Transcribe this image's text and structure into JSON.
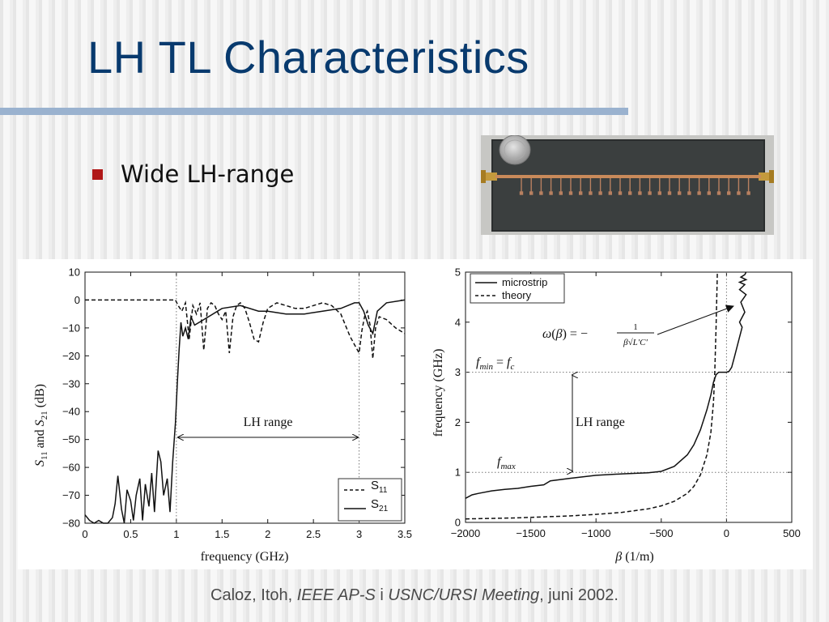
{
  "slide": {
    "title": "LH TL Characteristics",
    "bullet": "Wide LH-range"
  },
  "citation": {
    "authors": "Caloz, Itoh, ",
    "venue1": "IEEE AP-S",
    "conj": " i ",
    "venue2": "USNC/URSI Meeting",
    "date": ", juni 2002."
  },
  "colors": {
    "title": "#083a6e",
    "rule": "#9ab2cf",
    "bullet": "#b01818",
    "citation": "#4a4a4a"
  },
  "chart_data": [
    {
      "type": "line",
      "xlabel": "frequency (GHz)",
      "ylabel": "S11 and S21 (dB)",
      "xlim": [
        0,
        3.5
      ],
      "ylim": [
        -80,
        10
      ],
      "x_ticks": [
        "0",
        "0.5",
        "1",
        "1.5",
        "2",
        "2.5",
        "3",
        "3.5"
      ],
      "y_ticks": [
        "10",
        "0",
        "−10",
        "−20",
        "−30",
        "−40",
        "−50",
        "−60",
        "−70",
        "−80"
      ],
      "grid": false,
      "legend_position": "bottom-right",
      "annotation": "LH range",
      "lh_range": [
        1.0,
        3.0
      ],
      "series": [
        {
          "name": "S11",
          "style": "dashed",
          "x": [
            0,
            0.5,
            0.99,
            1.02,
            1.06,
            1.1,
            1.14,
            1.18,
            1.22,
            1.26,
            1.3,
            1.34,
            1.38,
            1.42,
            1.46,
            1.5,
            1.54,
            1.58,
            1.62,
            1.66,
            1.7,
            1.75,
            1.8,
            1.85,
            1.9,
            1.95,
            2.0,
            2.1,
            2.2,
            2.3,
            2.4,
            2.5,
            2.6,
            2.7,
            2.8,
            2.85,
            2.9,
            2.95,
            3.0,
            3.03,
            3.06,
            3.09,
            3.12,
            3.15,
            3.18,
            3.22,
            3.3,
            3.4,
            3.5
          ],
          "y": [
            0,
            0,
            0,
            -2,
            -4,
            -1,
            -14,
            -2,
            -5,
            -1,
            -18,
            -3,
            -1,
            -2,
            -5,
            -7,
            -4,
            -19,
            -6,
            -2,
            -1,
            -3,
            -8,
            -14,
            -15,
            -8,
            -3,
            -1,
            -2,
            -3,
            -3,
            -2,
            -1,
            -2,
            -5,
            -9,
            -13,
            -16,
            -19,
            -11,
            -6,
            -4,
            -9,
            -21,
            -10,
            -6,
            -7,
            -10,
            -12
          ]
        },
        {
          "name": "S21",
          "style": "solid",
          "x": [
            0,
            0.05,
            0.1,
            0.15,
            0.2,
            0.25,
            0.3,
            0.33,
            0.36,
            0.4,
            0.43,
            0.46,
            0.5,
            0.53,
            0.56,
            0.6,
            0.63,
            0.66,
            0.7,
            0.73,
            0.76,
            0.8,
            0.83,
            0.86,
            0.9,
            0.93,
            0.96,
            0.99,
            1.01,
            1.03,
            1.05,
            1.07,
            1.1,
            1.13,
            1.16,
            1.2,
            1.3,
            1.5,
            1.7,
            1.9,
            2.0,
            2.2,
            2.4,
            2.6,
            2.8,
            2.95,
            3.0,
            3.05,
            3.1,
            3.15,
            3.2,
            3.3,
            3.5
          ],
          "y": [
            -77,
            -79,
            -80,
            -79,
            -80,
            -80,
            -78,
            -73,
            -63,
            -75,
            -80,
            -68,
            -72,
            -79,
            -70,
            -64,
            -79,
            -66,
            -74,
            -62,
            -76,
            -54,
            -58,
            -70,
            -64,
            -76,
            -58,
            -44,
            -30,
            -18,
            -8,
            -13,
            -10,
            -14,
            -6,
            -9,
            -7,
            -3,
            -2,
            -4,
            -4,
            -5,
            -5,
            -4,
            -3,
            -1,
            -1,
            -4,
            -9,
            -12,
            -4,
            -1,
            0
          ]
        }
      ]
    },
    {
      "type": "line",
      "xlabel": "β (1/m)",
      "ylabel": "frequency (GHz)",
      "xlim": [
        -2000,
        500
      ],
      "ylim": [
        0,
        5
      ],
      "x_ticks": [
        "−2000",
        "−1500",
        "−1000",
        "−500",
        "0",
        "500"
      ],
      "y_ticks": [
        "0",
        "1",
        "2",
        "3",
        "4",
        "5"
      ],
      "grid": false,
      "legend_position": "top-left",
      "annotations": [
        "ω(β) = −1/(β√(L'C'))",
        "f_min = f_c",
        "f_max",
        "LH range"
      ],
      "reference_lines": {
        "f_min": 3,
        "f_max": 1
      },
      "series": [
        {
          "name": "microstrip",
          "style": "solid",
          "x": [
            -2000,
            -1950,
            -1900,
            -1800,
            -1700,
            -1600,
            -1500,
            -1400,
            -1350,
            -1200,
            -1000,
            -800,
            -600,
            -500,
            -400,
            -300,
            -250,
            -200,
            -150,
            -120,
            -100,
            -80,
            -60,
            -40,
            -20,
            0,
            20,
            40,
            60,
            80,
            100,
            110,
            120,
            100,
            140,
            110,
            150,
            100,
            140,
            100,
            150,
            110,
            140,
            150
          ],
          "y": [
            0.48,
            0.55,
            0.58,
            0.63,
            0.66,
            0.68,
            0.72,
            0.75,
            0.83,
            0.88,
            0.94,
            0.97,
            0.99,
            1.02,
            1.12,
            1.35,
            1.55,
            1.85,
            2.25,
            2.55,
            2.8,
            2.95,
            3.0,
            3.0,
            3.0,
            3.0,
            3.02,
            3.1,
            3.3,
            3.5,
            3.7,
            3.8,
            3.9,
            4.0,
            4.2,
            4.4,
            4.55,
            4.65,
            4.75,
            4.8,
            4.85,
            4.9,
            4.95,
            5.0
          ]
        },
        {
          "name": "theory",
          "style": "dashed",
          "x": [
            -2000,
            -1800,
            -1600,
            -1400,
            -1200,
            -1000,
            -800,
            -600,
            -500,
            -400,
            -300,
            -250,
            -200,
            -150,
            -120,
            -100,
            -90,
            -80,
            -70
          ],
          "y": [
            0.07,
            0.08,
            0.09,
            0.11,
            0.13,
            0.16,
            0.2,
            0.27,
            0.33,
            0.42,
            0.58,
            0.72,
            0.95,
            1.35,
            1.8,
            2.4,
            3.0,
            3.9,
            5.0
          ]
        }
      ]
    }
  ]
}
